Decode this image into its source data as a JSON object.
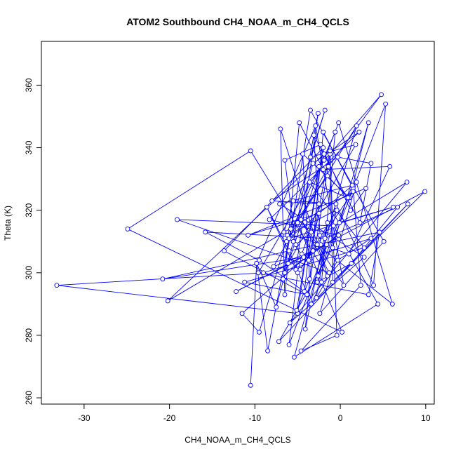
{
  "chart_data": {
    "type": "line",
    "title": "ATOM2 Southbound CH4_NOAA_m_CH4_QCLS",
    "xlabel": "CH4_NOAA_m_CH4_QCLS",
    "ylabel": "Theta (K)",
    "xlim": [
      -35,
      11
    ],
    "ylim": [
      258,
      374
    ],
    "xticks": [
      -30,
      -20,
      -10,
      0,
      10
    ],
    "yticks": [
      260,
      280,
      300,
      320,
      340,
      360
    ],
    "x_tick_labels": [
      "-30",
      "-20",
      "-10",
      "0",
      "10"
    ],
    "y_tick_labels": [
      "260",
      "280",
      "300",
      "320",
      "340",
      "360"
    ],
    "series_color": "#0000ff",
    "marker": "open-circle",
    "series": [
      {
        "name": "ATOM2 Southbound",
        "points": [
          [
            -10.5,
            264
          ],
          [
            -9.8,
            303
          ],
          [
            -7.5,
            289
          ],
          [
            -5.5,
            310
          ],
          [
            -2.6,
            351
          ],
          [
            -5.2,
            301
          ],
          [
            -8.6,
            321
          ],
          [
            -6.0,
            307
          ],
          [
            -3.8,
            293
          ],
          [
            -1.2,
            338
          ],
          [
            -0.4,
            280
          ],
          [
            -4.6,
            275
          ],
          [
            2.4,
            296
          ],
          [
            1.5,
            327
          ],
          [
            -2.0,
            345
          ],
          [
            -4.1,
            282
          ],
          [
            -1.5,
            316
          ],
          [
            -2.8,
            292
          ],
          [
            -0.3,
            304
          ],
          [
            3.6,
            311
          ],
          [
            -9.0,
            300
          ],
          [
            -33.2,
            296
          ],
          [
            -5.0,
            287
          ],
          [
            -2.5,
            334
          ],
          [
            4.8,
            357
          ],
          [
            -1.4,
            334
          ],
          [
            -7.8,
            302
          ],
          [
            -3.2,
            307
          ],
          [
            -11.5,
            287
          ],
          [
            -9.5,
            281
          ],
          [
            -1.8,
            352
          ],
          [
            -3.5,
            337
          ],
          [
            1.8,
            341
          ],
          [
            -6.1,
            303
          ],
          [
            -6.5,
            293
          ],
          [
            -7.0,
            346
          ],
          [
            -1.5,
            299
          ],
          [
            -10.5,
            339
          ],
          [
            -24.9,
            314
          ],
          [
            0.2,
            281
          ],
          [
            -5.0,
            316
          ],
          [
            -3.2,
            335
          ],
          [
            2.2,
            345
          ],
          [
            -8.3,
            317
          ],
          [
            -0.2,
            312
          ],
          [
            -6.5,
            300
          ],
          [
            -4.8,
            348
          ],
          [
            -2.0,
            333
          ],
          [
            5.8,
            334
          ],
          [
            1.0,
            306
          ],
          [
            -6.6,
            313
          ],
          [
            -5.5,
            323
          ],
          [
            -0.5,
            322
          ],
          [
            3.9,
            296
          ],
          [
            5.3,
            354
          ],
          [
            -2.7,
            297
          ],
          [
            1.3,
            303
          ],
          [
            6.7,
            321
          ],
          [
            -1.8,
            311
          ],
          [
            -15.8,
            313
          ],
          [
            -9.5,
            304
          ],
          [
            -4.2,
            294
          ],
          [
            -3.4,
            313
          ],
          [
            -5.2,
            309
          ],
          [
            -6.5,
            336
          ],
          [
            -2.3,
            341
          ],
          [
            1.2,
            320
          ],
          [
            3.0,
            327
          ],
          [
            -10.8,
            312
          ],
          [
            -2.5,
            319
          ],
          [
            -3.7,
            304
          ],
          [
            -1.2,
            339
          ],
          [
            -0.9,
            297
          ],
          [
            9.9,
            326
          ],
          [
            -12.2,
            294
          ],
          [
            -1.6,
            309
          ],
          [
            -6.0,
            277
          ],
          [
            -5.0,
            300
          ],
          [
            -4.5,
            306
          ],
          [
            -2.5,
            322
          ],
          [
            -8.0,
            323
          ],
          [
            -0.3,
            337
          ],
          [
            3.6,
            335
          ],
          [
            2.3,
            316
          ],
          [
            -3.1,
            344
          ],
          [
            -2.3,
            309
          ],
          [
            4.6,
            313
          ],
          [
            3.3,
            293
          ],
          [
            -9.6,
            300
          ],
          [
            -1.9,
            336
          ],
          [
            -0.2,
            348
          ],
          [
            6.1,
            290
          ],
          [
            -2.7,
            309
          ],
          [
            -20.8,
            298
          ],
          [
            -4.3,
            305
          ],
          [
            -6.2,
            312
          ],
          [
            -0.5,
            320
          ],
          [
            2.8,
            308
          ],
          [
            -11.2,
            297
          ],
          [
            -3.9,
            293
          ],
          [
            -13.6,
            307
          ],
          [
            -2.0,
            340
          ],
          [
            -5.1,
            288
          ],
          [
            -3.6,
            298
          ],
          [
            -4.4,
            338
          ],
          [
            1.1,
            324
          ],
          [
            3.3,
            348
          ],
          [
            -0.9,
            308
          ],
          [
            -7.2,
            278
          ],
          [
            7.9,
            322
          ],
          [
            -3.4,
            290
          ],
          [
            -2.2,
            297
          ],
          [
            -0.6,
            345
          ],
          [
            -6.3,
            310
          ],
          [
            1.9,
            347
          ],
          [
            -5.4,
            273
          ],
          [
            4.4,
            290
          ],
          [
            -0.8,
            315
          ],
          [
            -19.1,
            317
          ],
          [
            -1.3,
            300
          ],
          [
            -4.6,
            317
          ],
          [
            0.4,
            296
          ],
          [
            -2.9,
            347
          ],
          [
            -9.8,
            303
          ],
          [
            -8.5,
            275
          ],
          [
            -5.8,
            314
          ],
          [
            -1.5,
            331
          ],
          [
            0.9,
            324
          ],
          [
            -3.6,
            329
          ],
          [
            -0.1,
            316
          ],
          [
            6.2,
            321
          ],
          [
            -6.0,
            311
          ],
          [
            1.9,
            329
          ],
          [
            -2.4,
            287
          ],
          [
            5.1,
            310
          ],
          [
            -3.5,
            352
          ],
          [
            -6.7,
            298
          ],
          [
            -1.9,
            338
          ],
          [
            -20.2,
            291
          ],
          [
            1.5,
            326
          ],
          [
            -4.7,
            301
          ],
          [
            -0.4,
            320
          ],
          [
            -2.6,
            299
          ],
          [
            1.4,
            328
          ],
          [
            -7.1,
            322
          ],
          [
            2.8,
            305
          ],
          [
            -5.9,
            284
          ],
          [
            7.8,
            329
          ],
          [
            -2.4,
            312
          ]
        ]
      }
    ]
  }
}
